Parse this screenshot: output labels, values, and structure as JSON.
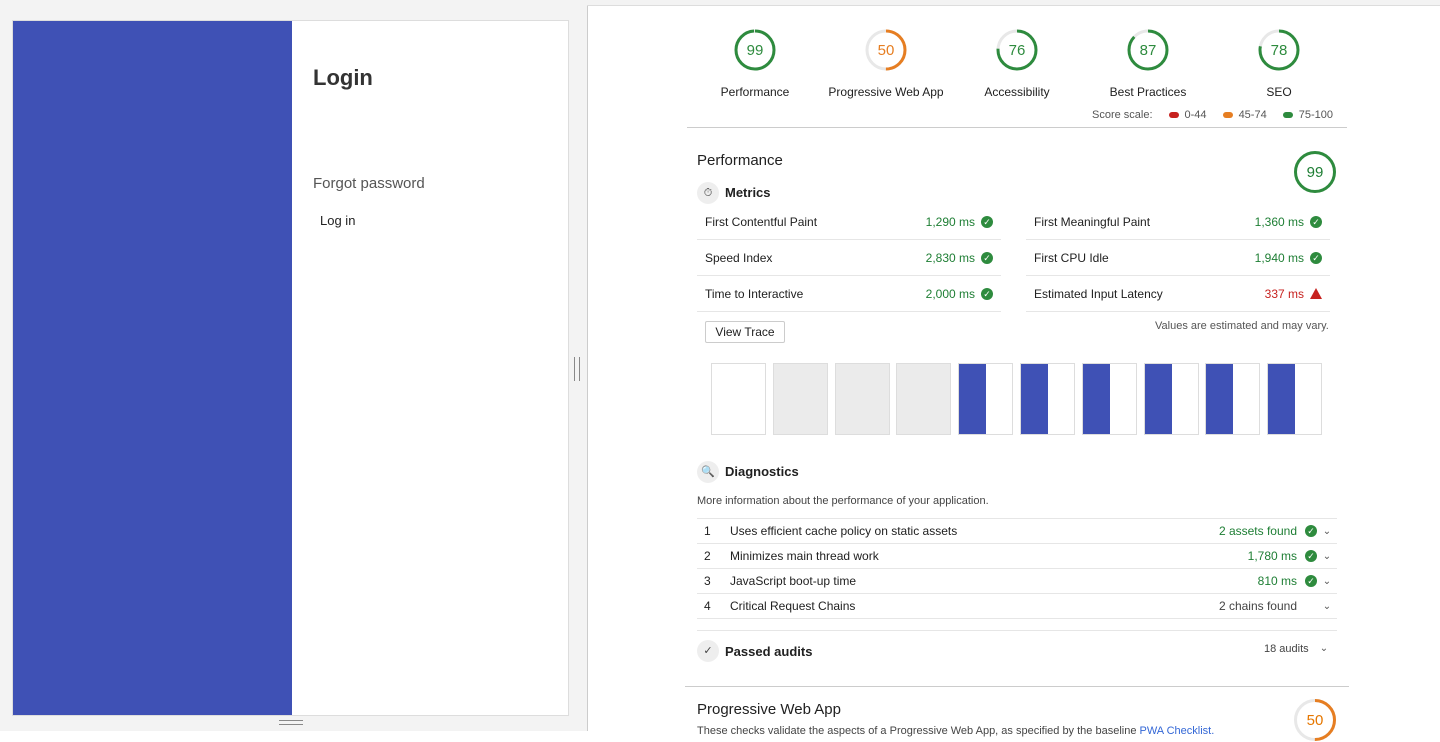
{
  "app": {
    "login_title": "Login",
    "forgot_password": "Forgot password",
    "login_button": "Log in"
  },
  "colors": {
    "sidebar": "#3f51b5",
    "good": "#1e7e34",
    "average": "#e67700",
    "fail": "#c7221f"
  },
  "gauges": [
    {
      "label": "Performance",
      "score": "99",
      "value": 99,
      "color": "#2e8b3e"
    },
    {
      "label": "Progressive Web App",
      "score": "50",
      "value": 50,
      "color": "#e67e22"
    },
    {
      "label": "Accessibility",
      "score": "76",
      "value": 76,
      "color": "#2e8b3e"
    },
    {
      "label": "Best Practices",
      "score": "87",
      "value": 87,
      "color": "#2e8b3e"
    },
    {
      "label": "SEO",
      "score": "78",
      "value": 78,
      "color": "#2e8b3e"
    }
  ],
  "scale": {
    "label": "Score scale:",
    "fail": "0-44",
    "average": "45-74",
    "pass": "75-100"
  },
  "performance": {
    "title": "Performance",
    "score": "99",
    "metrics_title": "Metrics",
    "metrics": [
      {
        "label": "First Contentful Paint",
        "value": "1,290 ms",
        "status": "pass"
      },
      {
        "label": "First Meaningful Paint",
        "value": "1,360 ms",
        "status": "pass"
      },
      {
        "label": "Speed Index",
        "value": "2,830 ms",
        "status": "pass"
      },
      {
        "label": "First CPU Idle",
        "value": "1,940 ms",
        "status": "pass"
      },
      {
        "label": "Time to Interactive",
        "value": "2,000 ms",
        "status": "pass"
      },
      {
        "label": "Estimated Input Latency",
        "value": "337 ms",
        "status": "fail"
      }
    ],
    "view_trace": "View Trace",
    "estimate_note": "Values are estimated and may vary.",
    "filmstrip": [
      "blank",
      "gray",
      "gray",
      "gray",
      "loaded",
      "loaded",
      "loaded",
      "loaded",
      "loaded",
      "loaded"
    ],
    "diagnostics_title": "Diagnostics",
    "diagnostics_desc": "More information about the performance of your application.",
    "diagnostics": [
      {
        "n": "1",
        "label": "Uses efficient cache policy on static assets",
        "value": "2 assets found",
        "check": true
      },
      {
        "n": "2",
        "label": "Minimizes main thread work",
        "value": "1,780 ms",
        "check": true
      },
      {
        "n": "3",
        "label": "JavaScript boot-up time",
        "value": "810 ms",
        "check": true
      },
      {
        "n": "4",
        "label": "Critical Request Chains",
        "value": "2 chains found",
        "check": false
      }
    ],
    "passed_title": "Passed audits",
    "passed_count": "18 audits"
  },
  "pwa": {
    "title": "Progressive Web App",
    "score": "50",
    "desc": "These checks validate the aspects of a Progressive Web App, as specified by the baseline ",
    "link": "PWA Checklist."
  }
}
